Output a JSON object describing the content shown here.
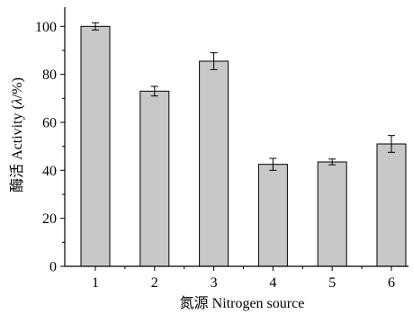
{
  "chart_data": {
    "type": "bar",
    "title": "",
    "xlabel": "氮源 Nitrogen source",
    "ylabel_prefix": "酶活 Activity (",
    "ylabel_italic": "λ",
    "ylabel_suffix": "/%)",
    "categories": [
      "1",
      "2",
      "3",
      "4",
      "5",
      "6"
    ],
    "values": [
      100,
      73,
      85.5,
      42.5,
      43.5,
      51
    ],
    "errors": [
      1.5,
      2,
      3.5,
      2.5,
      1.2,
      3.5
    ],
    "ylim": [
      0,
      108
    ],
    "yticks": [
      0,
      20,
      40,
      60,
      80,
      100
    ],
    "grid": false,
    "legend": "none",
    "bar_color": "#c8c8c8",
    "edge_color": "#000000"
  }
}
